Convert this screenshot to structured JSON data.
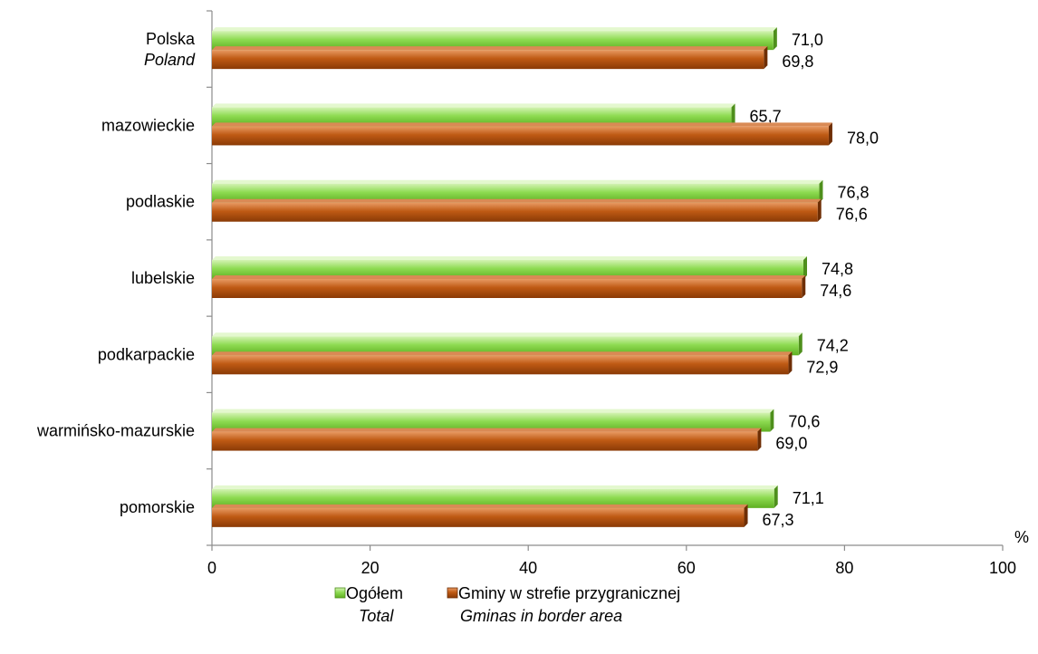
{
  "chart_data": {
    "type": "bar",
    "orientation": "horizontal",
    "categories": [
      [
        "Polska",
        "Poland"
      ],
      [
        "mazowieckie"
      ],
      [
        "podlaskie"
      ],
      [
        "lubelskie"
      ],
      [
        "podkarpackie"
      ],
      [
        "warmińsko-mazurskie"
      ],
      [
        "pomorskie"
      ]
    ],
    "series": [
      {
        "name": "Ogółem",
        "name_en": "Total",
        "color": "#7FD33F",
        "values": [
          71.0,
          65.7,
          76.8,
          74.8,
          74.2,
          70.6,
          71.1
        ],
        "labels": [
          "71,0",
          "65,7",
          "76,8",
          "74,8",
          "74,2",
          "70,6",
          "71,1"
        ]
      },
      {
        "name": "Gminy w strefie przygranicznej",
        "name_en": "Gminas in border area",
        "color": "#B8500F",
        "values": [
          69.8,
          78.0,
          76.6,
          74.6,
          72.9,
          69.0,
          67.3
        ],
        "labels": [
          "69,8",
          "78,0",
          "76,6",
          "74,6",
          "72,9",
          "69,0",
          "67,3"
        ]
      }
    ],
    "xlim": [
      0,
      100
    ],
    "xticks": [
      0,
      20,
      40,
      60,
      80,
      100
    ],
    "xunit": "%",
    "grid": false,
    "legend": "bottom"
  }
}
